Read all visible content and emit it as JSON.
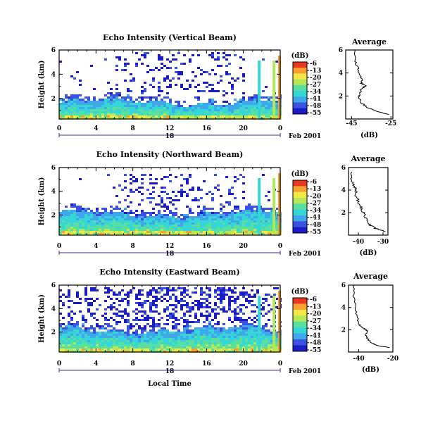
{
  "figure": {
    "date_label": "Feb 2001",
    "day_label": "18",
    "xlabel_bottom": "Local Time",
    "colorbar_unit": "(dB)",
    "colorbar_ticks": [
      "-6",
      "-13",
      "-20",
      "-27",
      "-34",
      "-41",
      "-48",
      "-55"
    ],
    "colors": {
      "scale": [
        "#1c1cc4",
        "#3a52e0",
        "#3fa8ea",
        "#36d6d8",
        "#58e0a0",
        "#b4e858",
        "#f4e848",
        "#f8a030",
        "#e83820"
      ],
      "background": "#ffffff"
    }
  },
  "chart_data": [
    {
      "type": "heatmap",
      "title": "Echo Intensity (Vertical Beam)",
      "ylabel": "Height (km)",
      "x_ticks": [
        "0",
        "4",
        "8",
        "12",
        "16",
        "20",
        "0"
      ],
      "y_ticks": [
        "6",
        "4",
        "2"
      ],
      "xlim": [
        0,
        24
      ],
      "ylim": [
        0.3,
        6
      ],
      "bg_layer_top_km": 1.8,
      "sparse_top_km": 6
    },
    {
      "type": "heatmap",
      "title": "Echo Intensity (Northward Beam)",
      "ylabel": "Height (km)",
      "x_ticks": [
        "0",
        "4",
        "8",
        "12",
        "16",
        "20",
        "0"
      ],
      "y_ticks": [
        "6",
        "4",
        "2"
      ],
      "xlim": [
        0,
        24
      ],
      "ylim": [
        0.3,
        6
      ],
      "bg_layer_top_km": 2.2,
      "sparse_top_km": 5.5
    },
    {
      "type": "heatmap",
      "title": "Echo Intensity (Eastward Beam)",
      "ylabel": "Height (km)",
      "x_ticks": [
        "0",
        "4",
        "8",
        "12",
        "16",
        "20",
        "0"
      ],
      "y_ticks": [
        "6",
        "4",
        "2"
      ],
      "xlim": [
        0,
        24
      ],
      "ylim": [
        0.3,
        6
      ],
      "bg_layer_top_km": 2.3,
      "sparse_top_km": 6
    },
    {
      "type": "line",
      "title": "Average",
      "xlabel": "(dB)",
      "x_ticks": [
        "-45",
        "-25"
      ],
      "y_ticks": [
        "6",
        "4",
        "2"
      ],
      "xlim": [
        -48,
        -24
      ],
      "ylim": [
        0,
        6
      ],
      "profile": [
        [
          -43,
          6.0
        ],
        [
          -43,
          5.0
        ],
        [
          -42,
          4.5
        ],
        [
          -41,
          4.0
        ],
        [
          -40,
          3.5
        ],
        [
          -40,
          3.1
        ],
        [
          -38,
          2.9
        ],
        [
          -40,
          2.6
        ],
        [
          -41,
          2.2
        ],
        [
          -41,
          1.8
        ],
        [
          -40,
          1.4
        ],
        [
          -37,
          1.0
        ],
        [
          -33,
          0.7
        ],
        [
          -26,
          0.4
        ]
      ]
    },
    {
      "type": "line",
      "title": "Average",
      "xlabel": "(dB)",
      "x_ticks": [
        "-40",
        "-30"
      ],
      "y_ticks": [
        "6",
        "4",
        "2"
      ],
      "xlim": [
        -44,
        -28
      ],
      "ylim": [
        0,
        6
      ],
      "profile": [
        [
          -43,
          5.6
        ],
        [
          -43,
          5.0
        ],
        [
          -42,
          4.5
        ],
        [
          -41,
          4.0
        ],
        [
          -41,
          3.5
        ],
        [
          -40,
          3.0
        ],
        [
          -39,
          2.5
        ],
        [
          -38,
          2.0
        ],
        [
          -37,
          1.5
        ],
        [
          -36,
          1.0
        ],
        [
          -33,
          0.6
        ],
        [
          -29,
          0.3
        ]
      ]
    },
    {
      "type": "line",
      "title": "Average",
      "xlabel": "(dB)",
      "x_ticks": [
        "-40",
        "-20"
      ],
      "y_ticks": [
        "6",
        "4",
        "2"
      ],
      "xlim": [
        -46,
        -20
      ],
      "ylim": [
        0,
        6
      ],
      "profile": [
        [
          -43,
          6.0
        ],
        [
          -43,
          5.0
        ],
        [
          -42,
          4.0
        ],
        [
          -41,
          3.2
        ],
        [
          -40,
          2.5
        ],
        [
          -37,
          2.1
        ],
        [
          -35,
          1.9
        ],
        [
          -36,
          1.5
        ],
        [
          -35,
          1.2
        ],
        [
          -33,
          0.9
        ],
        [
          -30,
          0.6
        ],
        [
          -22,
          0.4
        ]
      ]
    }
  ]
}
